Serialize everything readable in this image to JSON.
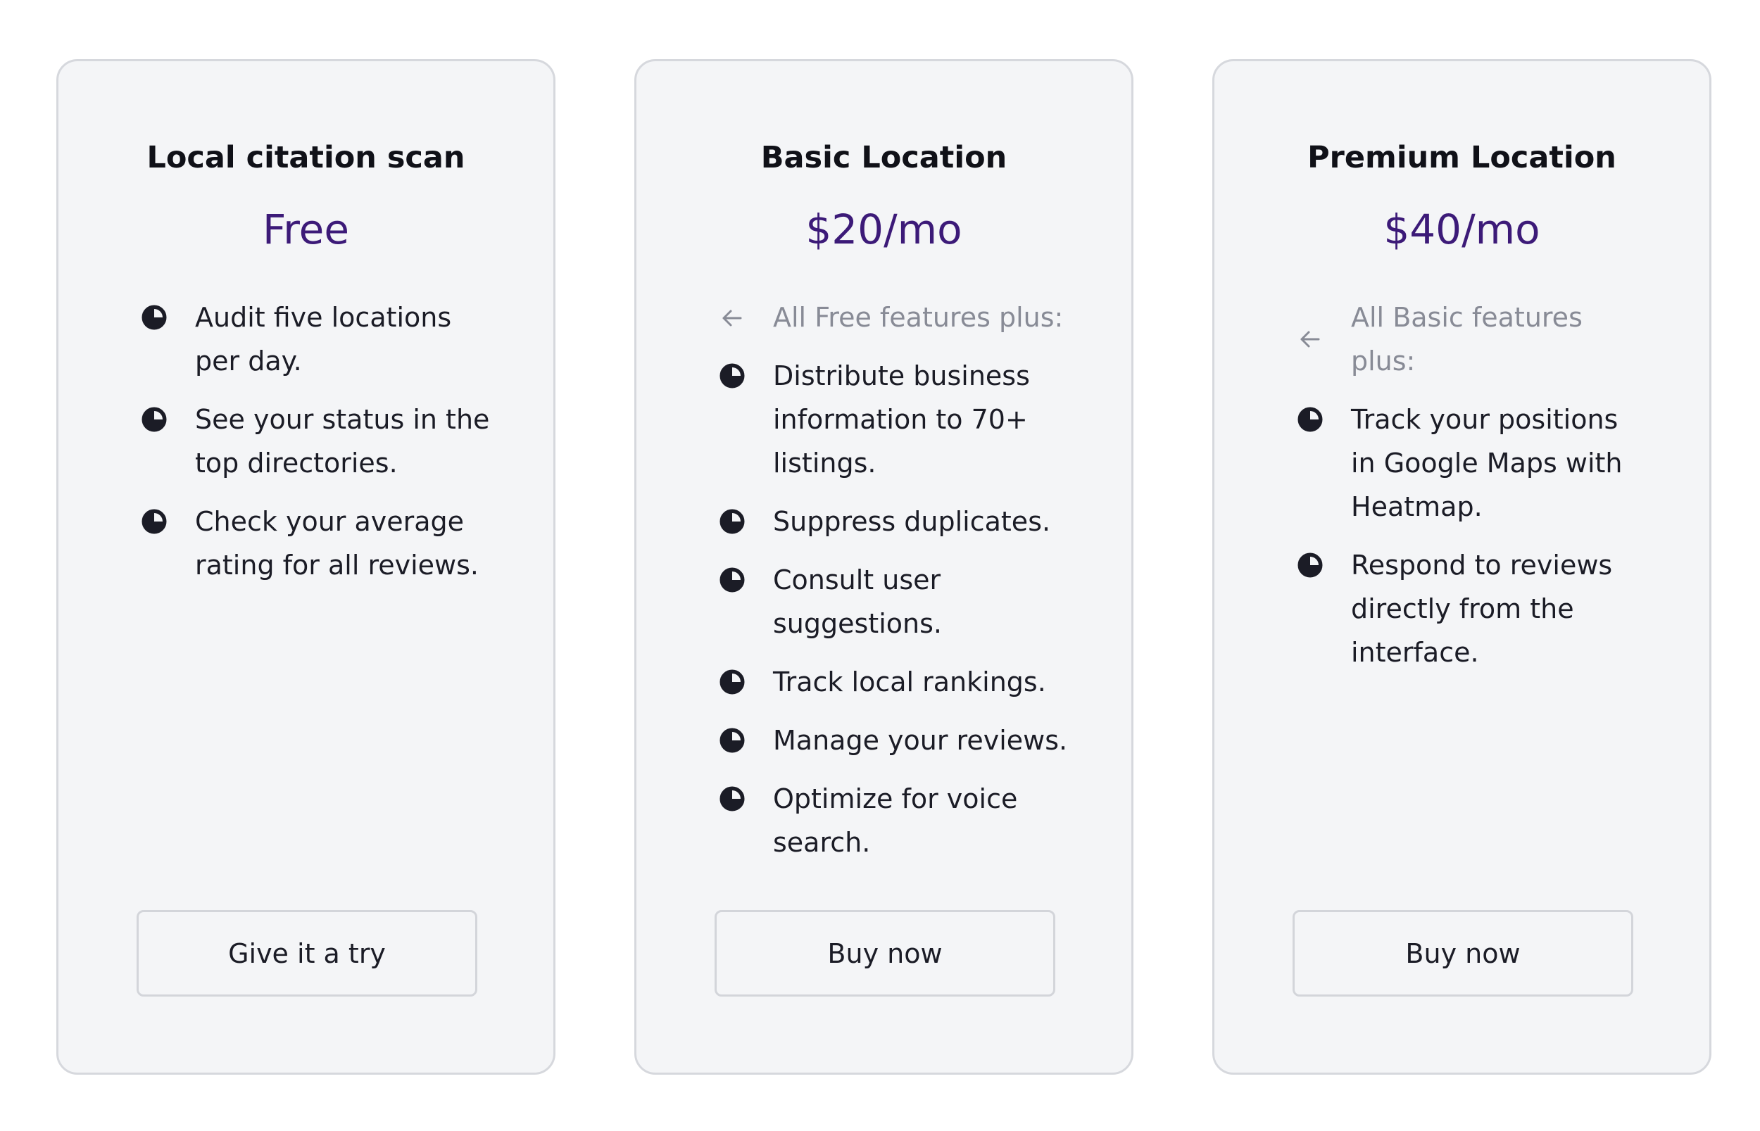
{
  "plans": [
    {
      "title": "Local citation scan",
      "price": "Free",
      "intro": "",
      "features": [
        "Audit five locations per day.",
        "See your status in the top directories.",
        "Check your average rating for all reviews."
      ],
      "button": "Give it a try"
    },
    {
      "title": "Basic Location",
      "price": "$20/mo",
      "intro": "All Free features plus:",
      "features": [
        "Distribute business information to 70+ listings.",
        "Suppress duplicates.",
        "Consult user suggestions.",
        "Track local rankings.",
        "Manage your reviews.",
        "Optimize for voice search."
      ],
      "button": "Buy now"
    },
    {
      "title": "Premium Location",
      "price": "$40/mo",
      "intro": "All Basic features plus:",
      "features": [
        "Track your positions in Google Maps with Heatmap.",
        "Respond to reviews directly from the interface."
      ],
      "button": "Buy now"
    }
  ],
  "icons": {
    "bullet": "bullet-icon",
    "intro": "arrow-left-icon"
  },
  "colors": {
    "card_background": "#f4f5f7",
    "card_border": "#d6d8dd",
    "price": "#3c1a78",
    "intro_text": "#888b96",
    "text": "#1b1c26"
  }
}
